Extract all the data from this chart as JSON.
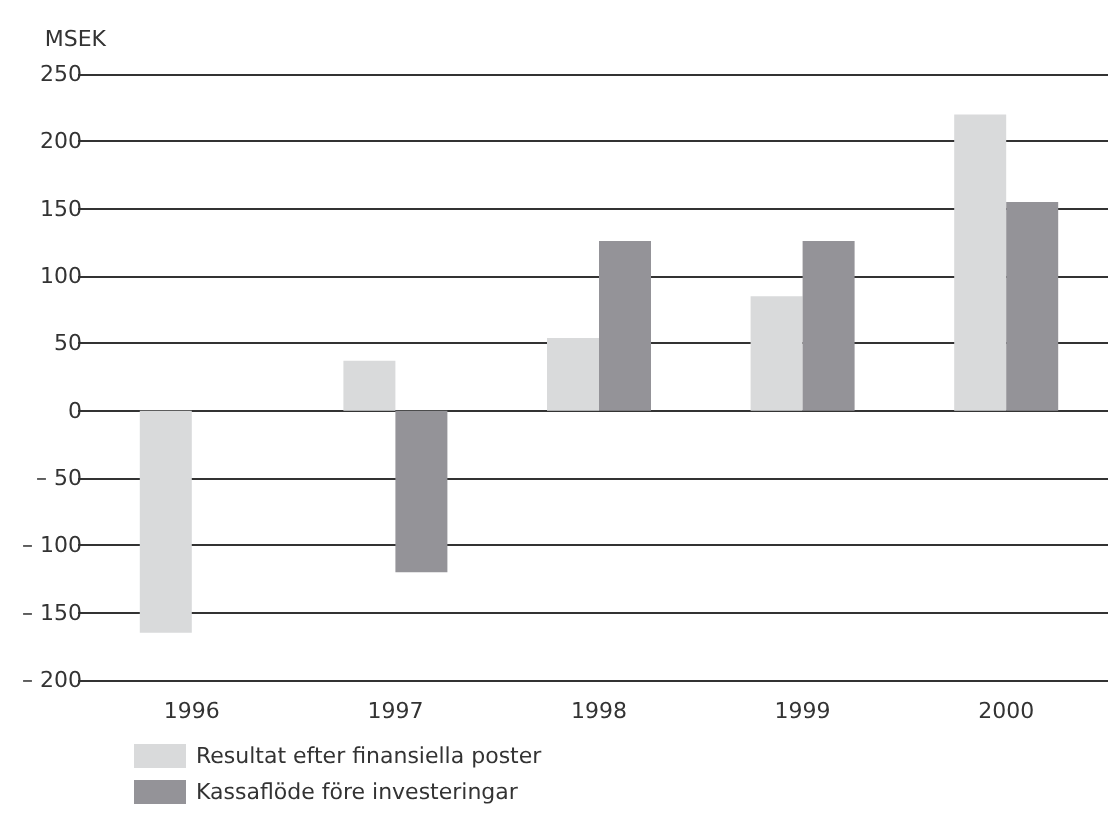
{
  "chart_data": {
    "type": "bar",
    "ylabel": "MSEK",
    "categories": [
      "1996",
      "1997",
      "1998",
      "1999",
      "2000"
    ],
    "series": [
      {
        "name": "Resultat efter finansiella poster",
        "color": "#d9dadb",
        "values": [
          -165,
          37,
          54,
          85,
          220
        ]
      },
      {
        "name": "Kassaflöde före investeringar",
        "color": "#949398",
        "values": [
          null,
          -120,
          126,
          126,
          155
        ]
      }
    ],
    "ylim": [
      -200,
      250
    ],
    "yticks": [
      {
        "value": -200,
        "label": "– 200"
      },
      {
        "value": -150,
        "label": "– 150"
      },
      {
        "value": -100,
        "label": "– 100"
      },
      {
        "value": -50,
        "label": "– 50"
      },
      0,
      50,
      100,
      150,
      200,
      250
    ],
    "grid": "y",
    "legend": "bottom left"
  }
}
